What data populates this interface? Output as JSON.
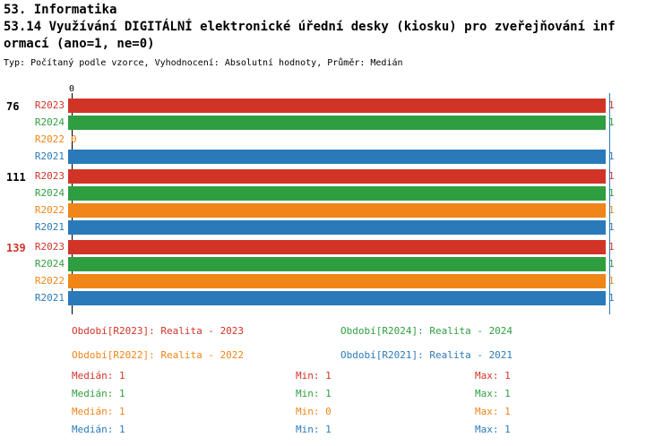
{
  "chart_data": {
    "type": "bar",
    "orientation": "horizontal",
    "title": "53. Informatika",
    "subtitle_line1": "53.14 Využívání DIGITÁLNÍ elektronické úřední desky (kiosku) pro zveřejňování inf",
    "subtitle_line2": "ormací (ano=1, ne=0)",
    "meta": "Typ: Počítaný podle vzorce, Vyhodnocení: Absolutní hodnoty, Průměr: Medián",
    "x_axis": {
      "origin_label": "0",
      "xlim": [
        0,
        1
      ]
    },
    "series_order": [
      "R2023",
      "R2024",
      "R2022",
      "R2021"
    ],
    "colors": {
      "R2023": "#d13427",
      "R2024": "#2f9e41",
      "R2022": "#f08519",
      "R2021": "#2a7ab9",
      "axis": "#000000",
      "median_line": "#2a7ab9"
    },
    "groups": [
      {
        "label": "76",
        "label_color": "#000000",
        "bars": [
          {
            "series": "R2023",
            "value": 1
          },
          {
            "series": "R2024",
            "value": 1
          },
          {
            "series": "R2022",
            "value": 0
          },
          {
            "series": "R2021",
            "value": 1
          }
        ]
      },
      {
        "label": "111",
        "label_color": "#000000",
        "bars": [
          {
            "series": "R2023",
            "value": 1
          },
          {
            "series": "R2024",
            "value": 1
          },
          {
            "series": "R2022",
            "value": 1
          },
          {
            "series": "R2021",
            "value": 1
          }
        ]
      },
      {
        "label": "139",
        "label_color": "#d13427",
        "bars": [
          {
            "series": "R2023",
            "value": 1
          },
          {
            "series": "R2024",
            "value": 1
          },
          {
            "series": "R2022",
            "value": 1
          },
          {
            "series": "R2021",
            "value": 1
          }
        ]
      }
    ],
    "legend": [
      {
        "series": "R2023",
        "label": "Období[R2023]: Realita - 2023"
      },
      {
        "series": "R2024",
        "label": "Období[R2024]: Realita - 2024"
      },
      {
        "series": "R2022",
        "label": "Období[R2022]: Realita - 2022"
      },
      {
        "series": "R2021",
        "label": "Období[R2021]: Realita - 2021"
      }
    ],
    "stats": [
      {
        "series": "R2023",
        "median": "Medián: 1",
        "min": "Min: 1",
        "max": "Max: 1"
      },
      {
        "series": "R2024",
        "median": "Medián: 1",
        "min": "Min: 1",
        "max": "Max: 1"
      },
      {
        "series": "R2022",
        "median": "Medián: 1",
        "min": "Min: 0",
        "max": "Max: 1"
      },
      {
        "series": "R2021",
        "median": "Medián: 1",
        "min": "Min: 1",
        "max": "Max: 1"
      }
    ]
  }
}
